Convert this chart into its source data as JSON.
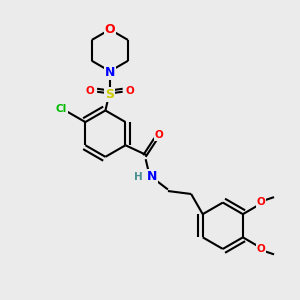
{
  "background_color": "#ebebeb",
  "bond_color": "#000000",
  "atom_colors": {
    "O": "#ff0000",
    "N": "#0000ff",
    "S": "#cccc00",
    "Cl": "#00bb00",
    "H": "#4a9090",
    "C": "#000000"
  },
  "lw": 1.5,
  "fs": 9.0,
  "fs_small": 7.5
}
